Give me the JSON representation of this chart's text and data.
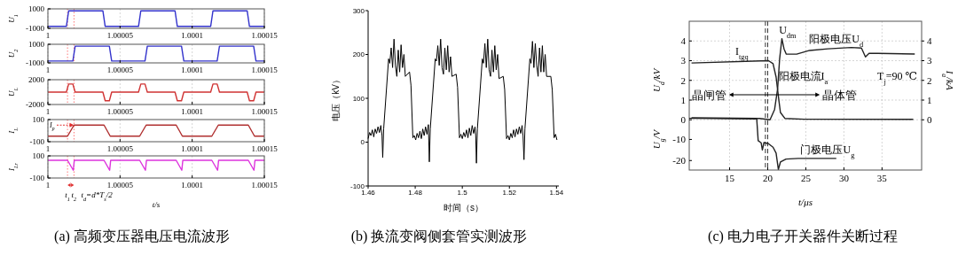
{
  "chart_data": [
    {
      "type": "line",
      "ylabel": "U$_{1}$",
      "xlim": [
        1,
        1.00015
      ],
      "xticks": [
        1,
        1.00005,
        1.0001,
        1.00015
      ],
      "ylim": [
        -1000,
        1000
      ],
      "yticks": [
        -1000,
        1000
      ],
      "grid": "x",
      "series": [
        {
          "color": "#3333cc",
          "x": [
            1,
            1.0000128,
            1.0000144,
            1.0000381,
            1.0000397,
            1.0000628,
            1.0000644,
            1.0000881,
            1.0000897,
            1.0001128,
            1.0001144,
            1.0001381,
            1.0001397,
            1.00015
          ],
          "values": [
            -800,
            -800,
            800,
            800,
            -800,
            -800,
            800,
            800,
            -800,
            -800,
            800,
            800,
            -800,
            -800
          ]
        }
      ],
      "ref_lines": [
        {
          "axis": "x",
          "value": 1.0000136,
          "color": "#ff7777",
          "line_style": "dotted"
        },
        {
          "axis": "x",
          "value": 1.0000181,
          "color": "#ff7777",
          "line_style": "dotted"
        }
      ]
    },
    {
      "type": "line",
      "ylabel": "U$_{2}$",
      "xlim": [
        1,
        1.00015
      ],
      "xticks": [
        1,
        1.00005,
        1.0001,
        1.00015
      ],
      "ylim": [
        -1000,
        1000
      ],
      "yticks": [
        -1000,
        1000
      ],
      "grid": "x",
      "series": [
        {
          "color": "#3333cc",
          "x": [
            1,
            1.0000173,
            1.0000189,
            1.0000426,
            1.0000442,
            1.0000673,
            1.0000689,
            1.0000926,
            1.0000942,
            1.0001173,
            1.0001189,
            1.0001426,
            1.0001442,
            1.00015
          ],
          "values": [
            -800,
            -800,
            800,
            800,
            -800,
            -800,
            800,
            800,
            -800,
            -800,
            800,
            800,
            -800,
            -800
          ]
        }
      ],
      "ref_lines": [
        {
          "axis": "x",
          "value": 1.0000136,
          "color": "#ff7777",
          "line_style": "dotted"
        },
        {
          "axis": "x",
          "value": 1.0000181,
          "color": "#ff7777",
          "line_style": "dotted"
        }
      ]
    },
    {
      "type": "line",
      "ylabel": "U$_{L}$",
      "xlim": [
        1,
        1.00015
      ],
      "xticks": [
        1,
        1.00005,
        1.0001,
        1.00015
      ],
      "ylim": [
        -2000,
        2000
      ],
      "yticks": [
        -2000,
        2000
      ],
      "grid": "x",
      "series": [
        {
          "color": "#d03333",
          "x": [
            1,
            1.0000128,
            1.0000144,
            1.0000173,
            1.0000189,
            1.0000381,
            1.0000397,
            1.0000426,
            1.0000442,
            1.0000628,
            1.0000644,
            1.0000673,
            1.0000689,
            1.0000881,
            1.0000897,
            1.0000926,
            1.0000942,
            1.0001128,
            1.0001144,
            1.0001173,
            1.0001189,
            1.0001381,
            1.0001397,
            1.0001426,
            1.0001442,
            1.00015
          ],
          "values": [
            0,
            0,
            1300,
            1300,
            0,
            0,
            -1400,
            -1400,
            0,
            0,
            1300,
            1300,
            0,
            0,
            -1400,
            -1400,
            0,
            0,
            1300,
            1300,
            0,
            0,
            -1400,
            -1400,
            0,
            0
          ]
        }
      ],
      "ref_lines": [
        {
          "axis": "x",
          "value": 1.0000136,
          "color": "#ff7777",
          "line_style": "dotted"
        },
        {
          "axis": "x",
          "value": 1.0000181,
          "color": "#ff7777",
          "line_style": "dotted"
        }
      ]
    },
    {
      "type": "line",
      "ylabel": "I$_{L}$",
      "xlim": [
        1,
        1.00015
      ],
      "xticks": [
        1,
        1.00005,
        1.0001,
        1.00015
      ],
      "ylim": [
        -100,
        100
      ],
      "yticks": [
        -100,
        100
      ],
      "grid": "x",
      "series": [
        {
          "color": "#b03030",
          "x": [
            1,
            1.0000136,
            1.0000181,
            1.0000389,
            1.0000432,
            1.0000636,
            1.0000681,
            1.0000889,
            1.0000932,
            1.0001136,
            1.0001181,
            1.0001389,
            1.0001432,
            1.00015
          ],
          "values": [
            -50,
            -50,
            50,
            50,
            -50,
            -50,
            50,
            50,
            -50,
            -50,
            50,
            50,
            -50,
            -50
          ]
        }
      ],
      "annotations": [
        {
          "text": "I$_{p}$",
          "x": 1.0000181,
          "y": 50
        }
      ],
      "ref_lines": [
        {
          "axis": "x",
          "value": 1.0000136,
          "color": "#ff7777",
          "line_style": "dotted"
        },
        {
          "axis": "x",
          "value": 1.0000181,
          "color": "#ff7777",
          "line_style": "dotted"
        }
      ]
    },
    {
      "type": "line",
      "ylabel": "I$_{Lr}$",
      "xlabel": "t/s",
      "title": "(a) 高频变压器电压电流波形",
      "xlim": [
        1,
        1.00015
      ],
      "xticks": [
        1,
        1.00005,
        1.0001,
        1.00015
      ],
      "ylim": [
        -100,
        100
      ],
      "yticks": [
        -100,
        100
      ],
      "grid": "x",
      "series": [
        {
          "color": "#dd33dd",
          "x": [
            1,
            1.0000136,
            1.0000176,
            1.0000183,
            1.0000389,
            1.0000428,
            1.0000435,
            1.0000636,
            1.0000676,
            1.0000683,
            1.0000889,
            1.0000928,
            1.0000935,
            1.0001136,
            1.0001176,
            1.0001183,
            1.0001389,
            1.0001428,
            1.0001435,
            1.00015
          ],
          "values": [
            60,
            60,
            -30,
            60,
            60,
            -30,
            60,
            60,
            -30,
            60,
            60,
            -30,
            60,
            60,
            -30,
            60,
            60,
            -30,
            60,
            60
          ]
        }
      ],
      "annotations": [
        "t$_{d}$=d*T$_{s}$/2"
      ],
      "ref_lines": [
        {
          "axis": "x",
          "value": 1.0000136,
          "label": "t$_{1}$",
          "color": "#ff7777",
          "line_style": "dotted"
        },
        {
          "axis": "x",
          "value": 1.0000181,
          "label": "t$_{2}$",
          "color": "#ff7777",
          "line_style": "dotted"
        }
      ]
    },
    {
      "type": "line",
      "title": "(b) 换流变阀侧套管实测波形",
      "xlabel": "时间（s）",
      "ylabel": "电压（kV）",
      "xlim": [
        1.46,
        1.541
      ],
      "xticks": [
        1.46,
        1.48,
        1.5,
        1.52,
        1.54
      ],
      "ylim": [
        -100,
        300
      ],
      "yticks": [
        -100,
        0,
        100,
        200,
        300
      ],
      "color": "#000000",
      "x": [
        1.46,
        1.4606,
        1.4612,
        1.4618,
        1.4624,
        1.463,
        1.4636,
        1.4642,
        1.4648,
        1.4654,
        1.4659,
        1.4662,
        1.4666,
        1.4687,
        1.4692,
        1.4698,
        1.4704,
        1.471,
        1.4716,
        1.4722,
        1.4728,
        1.4734,
        1.474,
        1.4746,
        1.4752,
        1.4758,
        1.4776,
        1.4782,
        1.479,
        1.4796,
        1.4802,
        1.4808,
        1.4814,
        1.482,
        1.4826,
        1.4832,
        1.4838,
        1.4844,
        1.485,
        1.4856,
        1.486,
        1.4864,
        1.4885,
        1.489,
        1.4896,
        1.4902,
        1.4908,
        1.4914,
        1.492,
        1.4926,
        1.4932,
        1.4938,
        1.4944,
        1.495,
        1.4956,
        1.4974,
        1.498,
        1.4988,
        1.4994,
        1.5,
        1.5006,
        1.5012,
        1.5018,
        1.5024,
        1.503,
        1.5036,
        1.5042,
        1.5048,
        1.5054,
        1.5057,
        1.506,
        1.5064,
        1.5085,
        1.509,
        1.5096,
        1.5102,
        1.5108,
        1.5114,
        1.512,
        1.5126,
        1.5132,
        1.5138,
        1.5144,
        1.515,
        1.5156,
        1.5174,
        1.518,
        1.5188,
        1.5194,
        1.52,
        1.5206,
        1.5212,
        1.5218,
        1.5224,
        1.523,
        1.5236,
        1.5242,
        1.5248,
        1.5254,
        1.5258,
        1.5262,
        1.5266,
        1.5287,
        1.5292,
        1.5298,
        1.5304,
        1.531,
        1.5316,
        1.5322,
        1.5328,
        1.5334,
        1.534,
        1.5346,
        1.5352,
        1.5358,
        1.5376,
        1.5382,
        1.539,
        1.5396,
        1.5402
      ],
      "values": [
        8,
        22,
        15,
        28,
        12,
        30,
        20,
        35,
        22,
        38,
        15,
        -35,
        30,
        190,
        180,
        215,
        170,
        235,
        175,
        150,
        210,
        160,
        222,
        170,
        200,
        150,
        160,
        130,
        10,
        15,
        5,
        20,
        10,
        25,
        8,
        30,
        15,
        35,
        18,
        40,
        -45,
        30,
        190,
        185,
        220,
        175,
        235,
        170,
        155,
        215,
        165,
        220,
        160,
        195,
        150,
        155,
        125,
        10,
        18,
        8,
        22,
        12,
        28,
        10,
        32,
        15,
        38,
        20,
        35,
        15,
        -48,
        30,
        190,
        180,
        225,
        170,
        235,
        165,
        150,
        210,
        160,
        220,
        165,
        200,
        145,
        150,
        120,
        8,
        15,
        5,
        20,
        10,
        28,
        12,
        30,
        18,
        35,
        20,
        38,
        15,
        -40,
        30,
        190,
        180,
        230,
        170,
        225,
        175,
        150,
        215,
        160,
        220,
        160,
        200,
        150,
        150,
        120,
        10,
        18,
        5
      ]
    },
    {
      "type": "line",
      "title": "(c) 电力电子开关器件关断过程",
      "xlabel": "t/μs",
      "ylabel": "U$_{d}$/kV",
      "y2label": "I$_{a}$/kA",
      "y3label": "U$_{g}$/V",
      "xlim": [
        9.7,
        40.2
      ],
      "xticks": [
        15,
        20,
        25,
        30,
        35
      ],
      "ylim": [
        -2.55,
        5.0
      ],
      "yticks": [
        0,
        1,
        2,
        3,
        4
      ],
      "y2lim": [
        -2.55,
        5.0
      ],
      "y2ticks": [
        0,
        1,
        2,
        3,
        4
      ],
      "y3lim": [
        -24.5,
        46
      ],
      "y3ticks": [
        -20,
        -10,
        {
          "value": 0,
          "label": null
        }
      ],
      "grid": true,
      "series": [
        {
          "color": "#222222",
          "x": [
            10.0,
            18.95,
            20.3,
            20.9,
            21.3,
            21.56,
            21.86,
            22.14,
            22.44,
            23.8,
            25.5,
            27.9,
            30.97,
            32.3,
            32.83,
            33.3,
            34.45,
            39.3
          ],
          "values": [
            0.1,
            0.07,
            0,
            0.52,
            1.57,
            3.07,
            4.12,
            3.6,
            3.33,
            3.33,
            3.52,
            3.6,
            3.67,
            3.64,
            3.19,
            3.37,
            3.37,
            3.34
          ]
        },
        {
          "color": "#222222",
          "axis": "y2",
          "x": [
            10.0,
            20.1,
            20.7,
            21.1,
            21.47,
            21.67,
            22.25,
            24.77,
            39.1
          ],
          "values": [
            2.88,
            3.0,
            2.85,
            2.17,
            0.97,
            0.37,
            0.07,
            0.03,
            0.02
          ]
        },
        {
          "color": "#222222",
          "axis": "y3",
          "x": [
            10.0,
            18.56,
            18.75,
            19.14,
            19.3,
            19.5,
            20.1,
            20.7,
            21.1,
            21.4,
            21.67,
            22.4,
            24.0,
            29.0
          ],
          "values": [
            0,
            -0.3,
            -10.6,
            -11.6,
            -15,
            -11.5,
            -12,
            -13.7,
            -16.5,
            -24.2,
            -20.7,
            -19.3,
            -19,
            -19
          ]
        }
      ],
      "ref_lines": [
        {
          "axis": "x",
          "value": 19.7,
          "color": "#333333",
          "line_style": "dashed"
        },
        {
          "axis": "x",
          "value": 20.0,
          "color": "#333333",
          "line_style": "dashed"
        }
      ],
      "annotations": [
        "U$_{dm}$",
        "阳极电压U$_{d}$",
        "I$_{tgq}$",
        "阳极电流I$_{a}$",
        "T$_{j}$=90 ℃",
        "晶闸管",
        "晶体管",
        "门极电压U$_{g}$"
      ]
    }
  ]
}
